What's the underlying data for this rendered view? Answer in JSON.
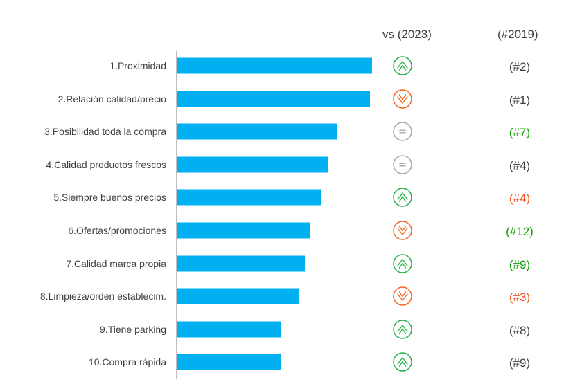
{
  "header": {
    "vs_label": "vs (2023)",
    "rank_label": "(#2019)"
  },
  "colors": {
    "bar": "#00b0f0",
    "up": "#22b14c",
    "down": "#f26522",
    "same": "#a6a6a6",
    "rank_neutral": "#404040",
    "rank_better": "#0aa100",
    "rank_worse": "#f0561c"
  },
  "chart_data": {
    "type": "bar",
    "orientation": "horizontal",
    "categories": [
      "1.Proximidad",
      "2.Relación calidad/precio",
      "3.Posibilidad toda la compra",
      "4.Calidad productos frescos",
      "5.Siempre buenos precios",
      "6.Ofertas/promociones",
      "7.Calidad marca propia",
      "8.Limpieza/orden establecim.",
      "9.Tiene parking",
      "10.Compra rápida"
    ],
    "values": [
      282,
      279,
      231,
      218,
      209,
      192,
      185,
      176,
      151,
      150
    ],
    "trend_vs_2023": [
      "up",
      "down",
      "same",
      "same",
      "up",
      "down",
      "up",
      "down",
      "up",
      "up"
    ],
    "rank_2019": [
      "(#2)",
      "(#1)",
      "(#7)",
      "(#4)",
      "(#4)",
      "(#12)",
      "(#9)",
      "(#3)",
      "(#8)",
      "(#9)"
    ],
    "rank_2019_color": [
      "neutral",
      "neutral",
      "better",
      "neutral",
      "worse",
      "better",
      "better",
      "worse",
      "neutral",
      "neutral"
    ],
    "title": "",
    "xlabel": "",
    "ylabel": "",
    "xlim": [
      0,
      290
    ]
  }
}
